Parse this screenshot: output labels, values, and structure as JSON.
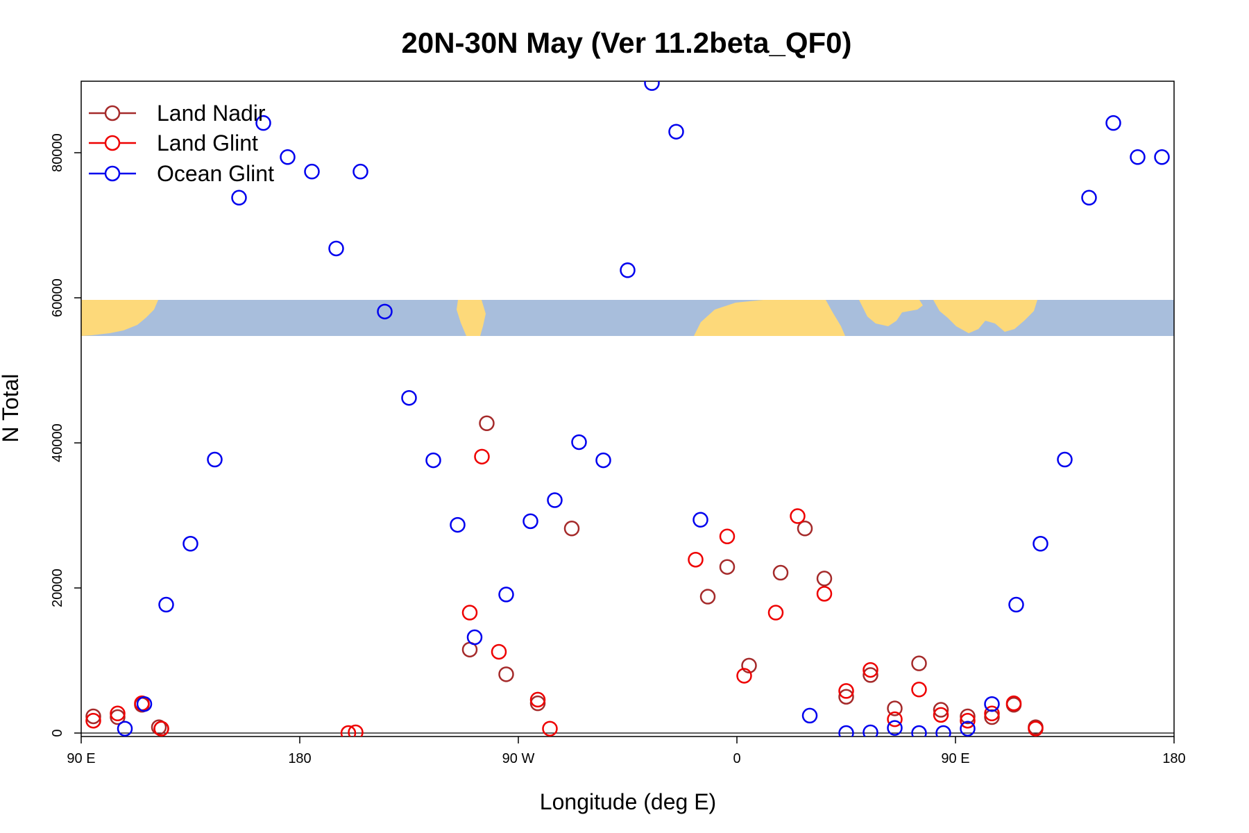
{
  "chart_data": {
    "type": "scatter",
    "title": "20N-30N May (Ver 11.2beta_QF0)",
    "xlabel": "Longitude (deg E)",
    "ylabel": "N Total",
    "x_ticks": [
      {
        "value": 0,
        "label": "90 E"
      },
      {
        "value": 90,
        "label": "180"
      },
      {
        "value": 180,
        "label": "90 W"
      },
      {
        "value": 270,
        "label": "0"
      },
      {
        "value": 360,
        "label": "90 E"
      },
      {
        "value": 450,
        "label": "180"
      }
    ],
    "y_ticks": [
      {
        "value": 0,
        "label": "0"
      },
      {
        "value": 20000,
        "label": "20000"
      },
      {
        "value": 40000,
        "label": "40000"
      },
      {
        "value": 60000,
        "label": "60000"
      },
      {
        "value": 80000,
        "label": "80000"
      }
    ],
    "xlim": [
      0,
      450
    ],
    "ylim": [
      0,
      89500
    ],
    "legend_position": "top-left",
    "map_strip": {
      "description_ylim": [
        55000,
        59800
      ],
      "ocean_color": "#a8bedc",
      "land_color": "#fdd97a"
    },
    "series": [
      {
        "name": "Land Nadir",
        "color": "#a52a2a",
        "x": [
          5,
          15,
          25,
          32,
          33,
          160,
          167,
          175,
          188,
          202,
          258,
          266,
          275,
          288,
          298,
          306,
          315,
          325,
          335,
          345,
          354,
          365,
          375,
          384,
          393
        ],
        "y": [
          2300,
          2200,
          3900,
          800,
          600,
          11500,
          42700,
          8100,
          4100,
          28200,
          18800,
          22900,
          9300,
          22100,
          28200,
          21300,
          5000,
          8000,
          3400,
          9600,
          3200,
          2300,
          2200,
          3900,
          800
        ]
      },
      {
        "name": "Land Glint",
        "color": "#ee0000",
        "x": [
          5,
          15,
          25,
          33,
          110,
          113,
          160,
          165,
          172,
          188,
          193,
          253,
          266,
          273,
          286,
          295,
          306,
          315,
          325,
          335,
          345,
          354,
          365,
          375,
          384,
          393
        ],
        "y": [
          1700,
          2700,
          4100,
          600,
          0,
          100,
          16600,
          38100,
          11200,
          4600,
          600,
          23900,
          27100,
          7900,
          16600,
          29900,
          19200,
          5800,
          8700,
          1900,
          6000,
          2500,
          1700,
          2700,
          4100,
          600
        ]
      },
      {
        "name": "Ocean Glint",
        "color": "#0000ee",
        "x": [
          18,
          26,
          35,
          45,
          55,
          65,
          75,
          85,
          95,
          105,
          115,
          125,
          135,
          145,
          155,
          162,
          175,
          185,
          195,
          205,
          215,
          225,
          235,
          245,
          255,
          300,
          315,
          325,
          335,
          345,
          355,
          365,
          375,
          385,
          395,
          405,
          415,
          425,
          435,
          445
        ],
        "y": [
          600,
          4000,
          17700,
          26100,
          37700,
          73800,
          84100,
          79400,
          77400,
          66800,
          77400,
          58100,
          46200,
          37600,
          28700,
          13200,
          19100,
          29200,
          32100,
          40100,
          37600,
          63800,
          89600,
          82900,
          29400,
          2400,
          0,
          100,
          700,
          0,
          0,
          600,
          4000,
          17700,
          26100,
          37700,
          73800,
          84100,
          79400,
          79400
        ]
      }
    ]
  }
}
